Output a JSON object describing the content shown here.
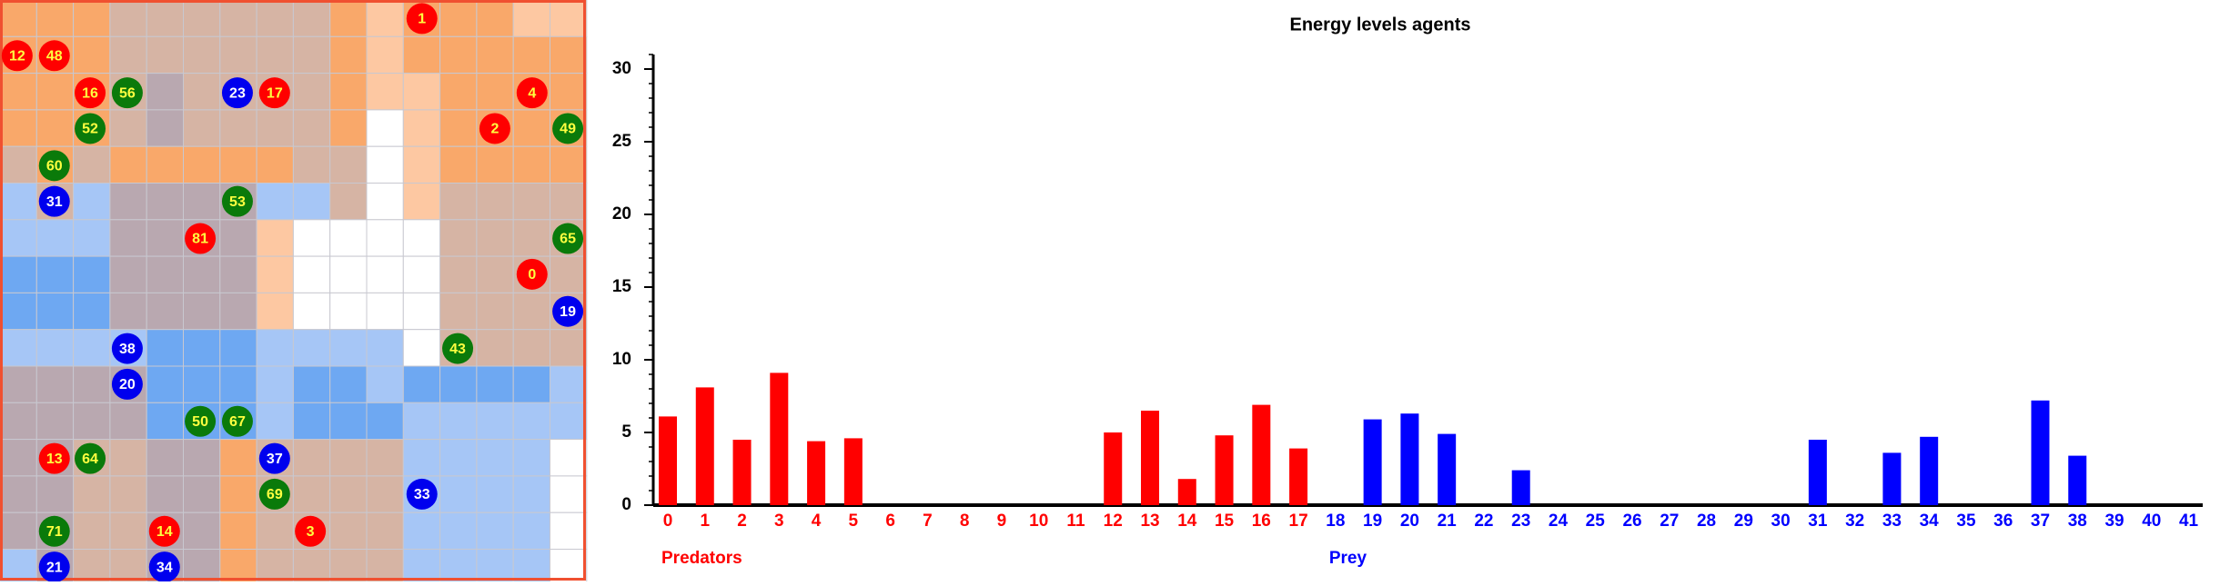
{
  "grid": {
    "agents": [
      {
        "label": "1",
        "color": "#ff0000",
        "text_color": "#ffff40"
      },
      {
        "label": "12",
        "color": "#ff0000",
        "text_color": "#ffff40"
      },
      {
        "label": "48",
        "color": "#ff0000",
        "text_color": "#ffff40"
      },
      {
        "label": "16",
        "color": "#ff0000",
        "text_color": "#ffff40"
      },
      {
        "label": "56",
        "color": "#0a7a0a",
        "text_color": "#ffff40"
      },
      {
        "label": "23",
        "color": "#0000ee",
        "text_color": "#ffffff"
      },
      {
        "label": "17",
        "color": "#ff0000",
        "text_color": "#ffff40"
      },
      {
        "label": "4",
        "color": "#ff0000",
        "text_color": "#ffff40"
      },
      {
        "label": "52",
        "color": "#0a7a0a",
        "text_color": "#ffff40"
      },
      {
        "label": "2",
        "color": "#ff0000",
        "text_color": "#ffff40"
      },
      {
        "label": "49",
        "color": "#0a7a0a",
        "text_color": "#ffff40"
      },
      {
        "label": "60",
        "color": "#0a7a0a",
        "text_color": "#ffff40"
      },
      {
        "label": "31",
        "color": "#0000ee",
        "text_color": "#ffffff"
      },
      {
        "label": "53",
        "color": "#0a7a0a",
        "text_color": "#ffff40"
      },
      {
        "label": "81",
        "color": "#ff0000",
        "text_color": "#ffff40"
      },
      {
        "label": "65",
        "color": "#0a7a0a",
        "text_color": "#ffff40"
      },
      {
        "label": "0",
        "color": "#ff0000",
        "text_color": "#ffff40"
      },
      {
        "label": "19",
        "color": "#0000ee",
        "text_color": "#ffffff"
      },
      {
        "label": "38",
        "color": "#0000ee",
        "text_color": "#ffffff"
      },
      {
        "label": "43",
        "color": "#0a7a0a",
        "text_color": "#ffff40"
      },
      {
        "label": "20",
        "color": "#0000ee",
        "text_color": "#ffffff"
      },
      {
        "label": "50",
        "color": "#0a7a0a",
        "text_color": "#ffff40"
      },
      {
        "label": "67",
        "color": "#0a7a0a",
        "text_color": "#ffff40"
      },
      {
        "label": "13",
        "color": "#ff0000",
        "text_color": "#ffff40"
      },
      {
        "label": "64",
        "color": "#0a7a0a",
        "text_color": "#ffff40"
      },
      {
        "label": "37",
        "color": "#0000ee",
        "text_color": "#ffffff"
      },
      {
        "label": "69",
        "color": "#0a7a0a",
        "text_color": "#ffff40"
      },
      {
        "label": "33",
        "color": "#0000ee",
        "text_color": "#ffffff"
      },
      {
        "label": "71",
        "color": "#0a7a0a",
        "text_color": "#ffff40"
      },
      {
        "label": "14",
        "color": "#ff0000",
        "text_color": "#ffff40"
      },
      {
        "label": "3",
        "color": "#ff0000",
        "text_color": "#ffff40"
      },
      {
        "label": "21",
        "color": "#0000ee",
        "text_color": "#ffffff"
      },
      {
        "label": "34",
        "color": "#0000ee",
        "text_color": "#ffffff"
      }
    ]
  },
  "chart_data": {
    "type": "bar",
    "title": "Energy levels agents",
    "categories": [
      "0",
      "1",
      "2",
      "3",
      "4",
      "5",
      "6",
      "7",
      "8",
      "9",
      "10",
      "11",
      "12",
      "13",
      "14",
      "15",
      "16",
      "17",
      "18",
      "19",
      "20",
      "21",
      "22",
      "23",
      "24",
      "25",
      "26",
      "27",
      "28",
      "29",
      "30",
      "31",
      "32",
      "33",
      "34",
      "35",
      "36",
      "37",
      "38",
      "39",
      "40",
      "41"
    ],
    "series": [
      {
        "name": "Predators",
        "color": "#ff0000",
        "values": [
          6.1,
          8.1,
          4.5,
          9.1,
          4.4,
          4.6,
          0,
          0,
          0,
          0,
          0,
          0,
          5.0,
          6.5,
          1.8,
          4.8,
          6.9,
          3.9,
          null,
          null,
          null,
          null,
          null,
          null,
          null,
          null,
          null,
          null,
          null,
          null,
          null,
          null,
          null,
          null,
          null,
          null,
          null,
          null,
          null,
          null,
          null,
          null
        ]
      },
      {
        "name": "Prey",
        "color": "#0000ff",
        "values": [
          null,
          null,
          null,
          null,
          null,
          null,
          null,
          null,
          null,
          null,
          null,
          null,
          null,
          null,
          null,
          null,
          null,
          null,
          0,
          5.9,
          6.3,
          4.9,
          0,
          2.4,
          0,
          0,
          0,
          0,
          0,
          0,
          0,
          4.5,
          0,
          3.6,
          4.7,
          0,
          0,
          7.2,
          3.4,
          0,
          0,
          0
        ]
      }
    ],
    "ylim": [
      0,
      31
    ],
    "yticks": [
      0,
      5,
      10,
      15,
      20,
      25,
      30
    ],
    "yminorticks": [
      1,
      2,
      3,
      4,
      6,
      7,
      8,
      9,
      11,
      12,
      13,
      14,
      16,
      17,
      18,
      19,
      21,
      22,
      23,
      24,
      26,
      27,
      28,
      29,
      31
    ]
  }
}
